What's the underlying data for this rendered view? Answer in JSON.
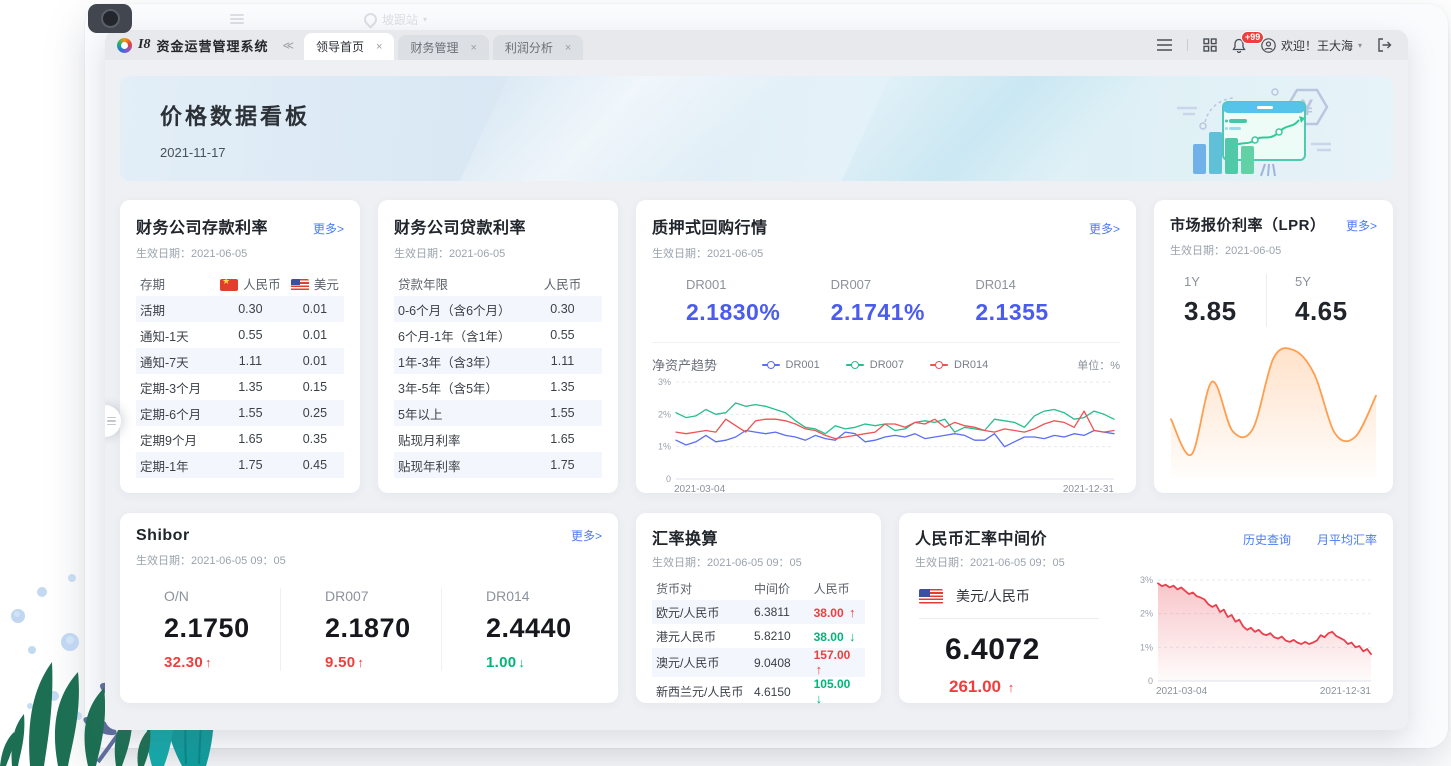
{
  "chrome": {
    "ghost_location": "坡跟站"
  },
  "app": {
    "logo_text": "I8",
    "title": "资金运营管理系统",
    "collapse_icon": "≪",
    "tabs": [
      {
        "label": "领导首页",
        "active": true
      },
      {
        "label": "财务管理",
        "active": false
      },
      {
        "label": "利润分析",
        "active": false
      }
    ],
    "notification_badge": "+99",
    "welcome": "欢迎！王大海"
  },
  "banner": {
    "title": "价格数据看板",
    "date": "2021-11-17"
  },
  "cards": {
    "deposit": {
      "title": "财务公司存款利率",
      "more": "更多>",
      "effective": "生效日期：2021-06-05",
      "headers": [
        "存期",
        "人民币",
        "美元"
      ],
      "rows": [
        [
          "活期",
          "0.30",
          "0.01"
        ],
        [
          "通知-1天",
          "0.55",
          "0.01"
        ],
        [
          "通知-7天",
          "1.11",
          "0.01"
        ],
        [
          "定期-3个月",
          "1.35",
          "0.15"
        ],
        [
          "定期-6个月",
          "1.55",
          "0.25"
        ],
        [
          "定期9个月",
          "1.65",
          "0.35"
        ],
        [
          "定期-1年",
          "1.75",
          "0.45"
        ]
      ]
    },
    "loan": {
      "title": "财务公司贷款利率",
      "effective": "生效日期：2021-06-05",
      "headers": [
        "贷款年限",
        "人民币"
      ],
      "rows": [
        [
          "0-6个月（含6个月）",
          "0.30"
        ],
        [
          "6个月-1年（含1年）",
          "0.55"
        ],
        [
          "1年-3年（含3年）",
          "1.11"
        ],
        [
          "3年-5年（含5年）",
          "1.35"
        ],
        [
          "5年以上",
          "1.55"
        ],
        [
          "贴现月利率",
          "1.65"
        ],
        [
          "贴现年利率",
          "1.75"
        ]
      ]
    },
    "repo": {
      "title": "质押式回购行情",
      "more": "更多>",
      "effective": "生效日期：2021-06-05",
      "quotes": [
        {
          "label": "DR001",
          "value": "2.1830%"
        },
        {
          "label": "DR007",
          "value": "2.1741%"
        },
        {
          "label": "DR014",
          "value": "2.1355"
        }
      ],
      "trend_title": "净资产趋势",
      "unit": "单位：%"
    },
    "lpr": {
      "title": "市场报价利率（LPR）",
      "more": "更多>",
      "effective": "生效日期：2021-06-05",
      "quotes": [
        {
          "label": "1Y",
          "value": "3.85"
        },
        {
          "label": "5Y",
          "value": "4.65"
        }
      ]
    },
    "shibor": {
      "title": "Shibor",
      "more": "更多>",
      "effective": "生效日期：2021-06-05 09：05",
      "quotes": [
        {
          "label": "O/N",
          "value": "2.1750",
          "delta": "32.30",
          "dir": "up"
        },
        {
          "label": "DR007",
          "value": "2.1870",
          "delta": "9.50",
          "dir": "up"
        },
        {
          "label": "DR014",
          "value": "2.4440",
          "delta": "1.00",
          "dir": "down"
        }
      ]
    },
    "fx": {
      "title": "汇率换算",
      "effective": "生效日期：2021-06-05 09：05",
      "headers": [
        "货币对",
        "中间价",
        "人民币"
      ],
      "rows": [
        {
          "pair": "欧元/人民币",
          "mid": "6.3811",
          "delta": "38.00",
          "dir": "up"
        },
        {
          "pair": "港元人民币",
          "mid": "5.8210",
          "delta": "38.00",
          "dir": "down"
        },
        {
          "pair": "澳元/人民币",
          "mid": "9.0408",
          "delta": "157.00",
          "dir": "up"
        },
        {
          "pair": "新西兰元/人民币",
          "mid": "4.6150",
          "delta": "105.00",
          "dir": "down"
        }
      ]
    },
    "cny": {
      "title": "人民币汇率中间价",
      "links": [
        "历史查询",
        "月平均汇率"
      ],
      "effective": "生效日期：2021-06-05 09：05",
      "pair": "美元/人民币",
      "value": "6.4072",
      "delta": "261.00",
      "dir": "up"
    }
  },
  "chart_data": [
    {
      "type": "line",
      "title": "净资产趋势",
      "unit": "单位：%",
      "ylim": [
        0,
        3
      ],
      "yticks": [
        "3%",
        "2%",
        "1%",
        "0"
      ],
      "xlabels": [
        "2021-03-04",
        "2021-12-31"
      ],
      "grid": "dashed",
      "legend_position": "top",
      "series": [
        {
          "name": "DR001",
          "color": "#5b6ef5",
          "values": [
            1.2,
            1.05,
            1.15,
            1.35,
            1.15,
            1.2,
            1.3,
            1.5,
            1.45,
            1.4,
            1.45,
            1.35,
            1.3,
            1.2,
            1.35,
            1.25,
            1.2,
            1.45,
            1.4,
            1.15,
            1.2,
            1.3,
            1.35,
            1.3,
            1.4,
            1.25,
            1.3,
            1.35,
            1.4,
            1.35,
            1.2,
            1.2,
            1.4,
            1.0,
            1.15,
            1.3,
            1.3,
            1.25,
            1.35,
            1.3,
            1.4,
            1.35,
            1.5,
            1.45,
            1.4
          ]
        },
        {
          "name": "DR007",
          "color": "#27bd8d",
          "values": [
            2.05,
            1.9,
            1.95,
            2.15,
            2.0,
            2.05,
            2.35,
            2.25,
            2.3,
            2.25,
            2.15,
            2.05,
            1.8,
            1.6,
            1.55,
            1.4,
            1.65,
            1.55,
            1.6,
            1.7,
            1.65,
            1.7,
            1.5,
            1.55,
            1.75,
            1.8,
            1.75,
            1.85,
            1.45,
            1.6,
            1.55,
            1.5,
            1.85,
            1.8,
            1.75,
            1.6,
            1.95,
            2.1,
            2.15,
            2.05,
            1.85,
            1.9,
            2.1,
            2.0,
            1.85
          ]
        },
        {
          "name": "DR014",
          "color": "#ee5253",
          "values": [
            1.45,
            1.4,
            1.45,
            1.5,
            1.45,
            1.85,
            1.65,
            1.45,
            1.8,
            1.85,
            1.85,
            1.8,
            1.7,
            1.55,
            1.5,
            1.35,
            1.25,
            1.3,
            1.35,
            1.4,
            1.45,
            1.7,
            1.7,
            1.6,
            1.75,
            1.7,
            1.85,
            1.6,
            1.75,
            1.65,
            1.6,
            1.5,
            1.45,
            1.55,
            1.5,
            1.45,
            1.55,
            1.7,
            1.8,
            1.75,
            1.6,
            2.1,
            1.5,
            1.45,
            1.5
          ]
        }
      ]
    },
    {
      "type": "area",
      "smooth": true,
      "color": "#ff9e4f",
      "ylim": [
        0,
        3
      ],
      "values": [
        1.25,
        0.5,
        2.05,
        1.0,
        1.05,
        2.55,
        2.72,
        2.2,
        0.95,
        0.88,
        1.75
      ]
    },
    {
      "type": "area",
      "color": "#e8414d",
      "ylim": [
        0,
        3
      ],
      "yticks": [
        "3%",
        "2%",
        "1%",
        "0"
      ],
      "xlabels": [
        "2021-03-04",
        "2021-12-31"
      ],
      "grid": "dashed",
      "values": [
        2.9,
        2.82,
        2.86,
        2.78,
        2.83,
        2.72,
        2.78,
        2.68,
        2.58,
        2.63,
        2.52,
        2.48,
        2.42,
        2.28,
        2.2,
        2.26,
        2.05,
        2.12,
        1.9,
        1.96,
        1.76,
        1.82,
        1.62,
        1.52,
        1.58,
        1.46,
        1.52,
        1.4,
        1.36,
        1.42,
        1.3,
        1.26,
        1.32,
        1.2,
        1.16,
        1.22,
        1.14,
        1.1,
        1.16,
        1.1,
        1.14,
        1.2,
        1.36,
        1.3,
        1.42,
        1.46,
        1.34,
        1.28,
        1.22,
        1.1,
        1.14,
        1.0,
        1.04,
        0.88,
        0.95,
        0.8
      ]
    }
  ]
}
